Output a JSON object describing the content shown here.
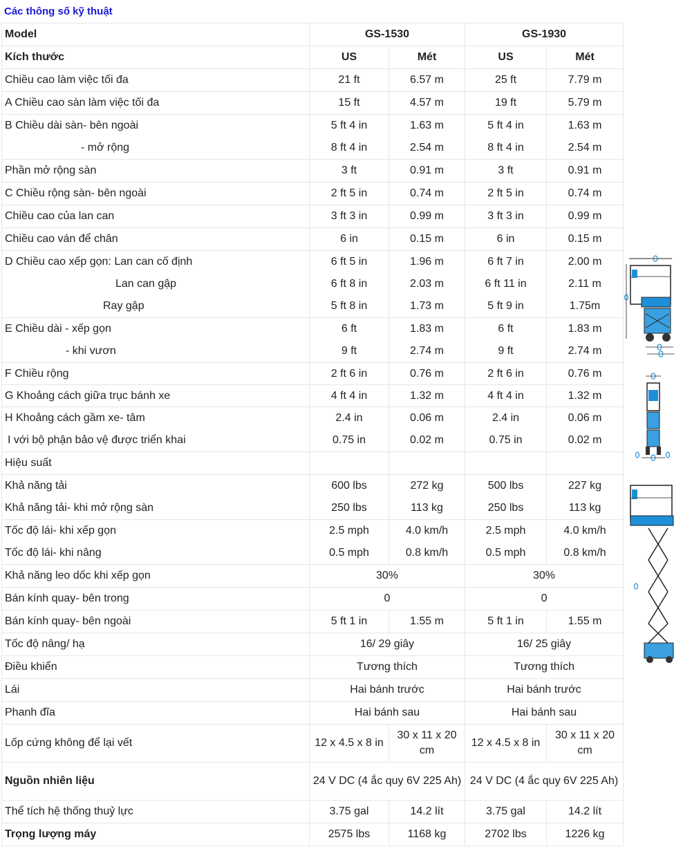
{
  "title": "Các thông số kỹ thuật",
  "header": {
    "model_label": "Model",
    "model_a": "GS-1530",
    "model_b": "GS-1930",
    "dims_label": "Kích thước",
    "us": "US",
    "met": "Mét"
  },
  "rows": [
    {
      "label": "Chiều cao làm việc tối đa",
      "a_us": "21 ft",
      "a_m": "6.57 m",
      "b_us": "25 ft",
      "b_m": "7.79 m"
    },
    {
      "label": "A Chiều cao sàn làm việc tối đa",
      "a_us": "15 ft",
      "a_m": "4.57 m",
      "b_us": "19 ft",
      "b_m": "5.79 m"
    },
    {
      "label": "B Chiều dài sàn- bên ngoài",
      "a_us": "5 ft 4 in",
      "a_m": "1.63 m",
      "b_us": "5 ft 4 in",
      "b_m": "1.63 m",
      "label2": "- mở rộng",
      "a_us2": "8 ft 4 in",
      "a_m2": "2.54 m",
      "b_us2": "8 ft 4 in",
      "b_m2": "2.54 m"
    },
    {
      "label": "Phần mở rộng sàn",
      "a_us": "3 ft",
      "a_m": "0.91 m",
      "b_us": "3 ft",
      "b_m": "0.91 m"
    },
    {
      "label": "C Chiều rộng sàn- bên ngoài",
      "a_us": "2 ft 5 in",
      "a_m": "0.74 m",
      "b_us": "2 ft 5 in",
      "b_m": "0.74 m"
    },
    {
      "label": "Chiều cao của lan can",
      "a_us": "3 ft 3 in",
      "a_m": "0.99 m",
      "b_us": "3 ft 3 in",
      "b_m": "0.99 m"
    },
    {
      "label": "Chiều cao ván để chân",
      "a_us": "6 in",
      "a_m": "0.15 m",
      "b_us": "6 in",
      "b_m": "0.15 m"
    },
    {
      "label": "D Chiều cao xếp gọn: Lan can cố định",
      "a_us": "6 ft 5 in",
      "a_m": "1.96 m",
      "b_us": "6 ft 7 in",
      "b_m": "2.00 m",
      "label2": "Lan can gập",
      "a_us2": "6 ft 8 in",
      "a_m2": "2.03 m",
      "b_us2": "6 ft 11 in",
      "b_m2": "2.11 m",
      "label3": "Ray gập",
      "a_us3": "5 ft 8 in",
      "a_m3": "1.73 m",
      "b_us3": "5 ft 9 in",
      "b_m3": "1.75m"
    },
    {
      "label": "E Chiều dài - xếp gọn",
      "a_us": "6 ft",
      "a_m": "1.83 m",
      "b_us": "6 ft",
      "b_m": "1.83 m",
      "label2": "- khi vươn",
      "a_us2": "9 ft",
      "a_m2": "2.74 m",
      "b_us2": "9 ft",
      "b_m2": "2.74 m"
    },
    {
      "label": "F Chiều rộng",
      "a_us": "2 ft 6 in",
      "a_m": "0.76 m",
      "b_us": "2 ft 6 in",
      "b_m": "0.76 m"
    },
    {
      "label": "G Khoảng cách giữa trục bánh xe",
      "a_us": "4 ft 4 in",
      "a_m": "1.32 m",
      "b_us": "4 ft 4 in",
      "b_m": "1.32 m"
    },
    {
      "label": "H Khoảng cách gầm xe- tâm",
      "a_us": "2.4 in",
      "a_m": "0.06 m",
      "b_us": "2.4 in",
      "b_m": "0.06 m",
      "label2": "I với bộ phận bảo vệ được triển khai",
      "a_us2": "0.75 in",
      "a_m2": "0.02 m",
      "b_us2": "0.75 in",
      "b_m2": "0.02 m"
    }
  ],
  "perf_label": "Hiệu suất",
  "perf_rows": [
    {
      "label": "Khả năng tải",
      "a_us": "600 lbs",
      "a_m": "272 kg",
      "b_us": "500 lbs",
      "b_m": "227 kg"
    },
    {
      "label": "Khả năng tải- khi mở rộng sàn",
      "a_us": "250 lbs",
      "a_m": "113 kg",
      "b_us": "250 lbs",
      "b_m": "113 kg"
    },
    {
      "label": "Tốc độ lái- khi xếp gọn",
      "a_us": "2.5 mph",
      "a_m": "4.0 km/h",
      "b_us": "2.5 mph",
      "b_m": "4.0 km/h"
    },
    {
      "label": "Tốc độ lái- khi nâng",
      "a_us": "0.5 mph",
      "a_m": "0.8 km/h",
      "b_us": "0.5 mph",
      "b_m": "0.8 km/h"
    }
  ],
  "merged_rows": [
    {
      "label": "Khả năng leo dốc khi xếp gọn",
      "a": "30%",
      "b": "30%"
    },
    {
      "label": "Bán kính quay- bên trong",
      "a": "0",
      "b": "0"
    }
  ],
  "outer_turn": {
    "label": "Bán kính quay- bên ngoài",
    "a_us": "5 ft 1 in",
    "a_m": "1.55 m",
    "b_us": "5 ft 1 in",
    "b_m": "1.55 m"
  },
  "merged_rows2": [
    {
      "label": "Tốc độ nâng/ hạ",
      "a": "16/ 29 giây",
      "b": "16/ 25 giây"
    },
    {
      "label": "Điều khiển",
      "a": "Tương thích",
      "b": "Tương thích"
    },
    {
      "label": "Lái",
      "a": "Hai bánh trước",
      "b": "Hai bánh trước"
    },
    {
      "label": "Phanh đĩa",
      "a": "Hai bánh sau",
      "b": "Hai bánh sau"
    }
  ],
  "tires": {
    "label": "Lốp cứng không để lại vết",
    "a_us": "12 x 4.5 x 8 in",
    "a_m": "30 x 11 x 20 cm",
    "b_us": "12 x 4.5 x 8 in",
    "b_m": "30 x 11 x 20 cm"
  },
  "power": {
    "label": "Nguồn nhiên liệu",
    "a": "24 V DC (4 ắc quy 6V 225 Ah)",
    "b": "24 V DC (4 ắc quy 6V 225 Ah)"
  },
  "hydraulic": {
    "label": "Thể tích hệ thống thuỷ lực",
    "a_us": "3.75 gal",
    "a_m": "14.2 lít",
    "b_us": "3.75 gal",
    "b_m": "14.2 lít"
  },
  "weight": {
    "label": "Trọng lượng máy",
    "a_us": "2575 lbs",
    "a_m": "1168 kg",
    "b_us": "2702 lbs",
    "b_m": "1226 kg"
  },
  "colors": {
    "title": "#1a1ad6",
    "machine_blue": "#1d8fd8",
    "border": "#e6e6e6"
  },
  "diagrams": [
    "side-view-diagram",
    "front-view-diagram",
    "extended-view-diagram"
  ]
}
